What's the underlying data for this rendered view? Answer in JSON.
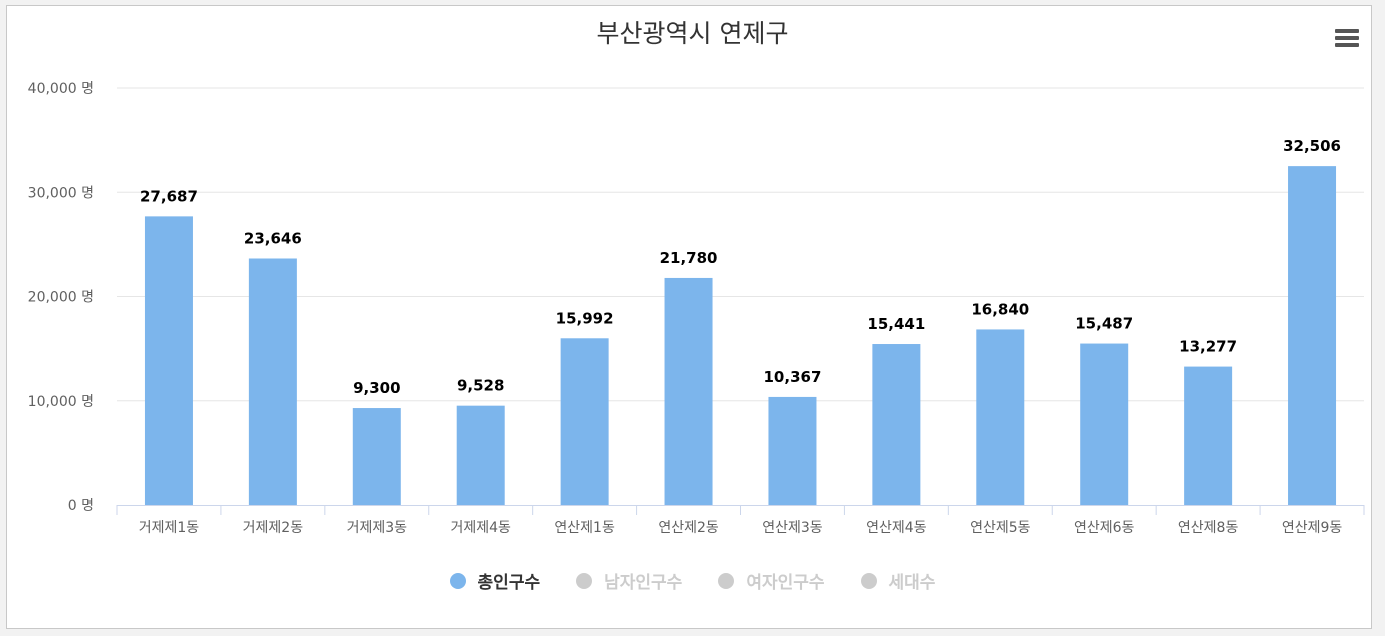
{
  "chart_data": {
    "type": "bar",
    "title": "부산광역시 연제구",
    "categories": [
      "거제제1동",
      "거제제2동",
      "거제제3동",
      "거제제4동",
      "연산제1동",
      "연산제2동",
      "연산제3동",
      "연산제4동",
      "연산제5동",
      "연산제6동",
      "연산제8동",
      "연산제9동"
    ],
    "series": [
      {
        "name": "총인구수",
        "values": [
          27687,
          23646,
          9300,
          9528,
          15992,
          21780,
          10367,
          15441,
          16840,
          15487,
          13277,
          32506
        ],
        "visible": true
      }
    ],
    "data_labels": [
      "27,687",
      "23,646",
      "9,300",
      "9,528",
      "15,992",
      "21,780",
      "10,367",
      "15,441",
      "16,840",
      "15,487",
      "13,277",
      "32,506"
    ],
    "yticks": [
      0,
      10000,
      20000,
      30000,
      40000
    ],
    "ytick_labels": [
      "0 명",
      "10,000 명",
      "20,000 명",
      "30,000 명",
      "40,000 명"
    ],
    "ylim": [
      0,
      40000
    ],
    "grid": true,
    "legend_position": "bottom-center",
    "bar_color": "#7cb5ec"
  },
  "legend": {
    "items": [
      {
        "label": "총인구수",
        "color": "#7cb5ec",
        "text_color": "#333333"
      },
      {
        "label": "남자인구수",
        "color": "#cccccc",
        "text_color": "#cccccc"
      },
      {
        "label": "여자인구수",
        "color": "#cccccc",
        "text_color": "#cccccc"
      },
      {
        "label": "세대수",
        "color": "#cccccc",
        "text_color": "#cccccc"
      }
    ]
  },
  "menu": {
    "icon": "hamburger-menu-icon"
  }
}
